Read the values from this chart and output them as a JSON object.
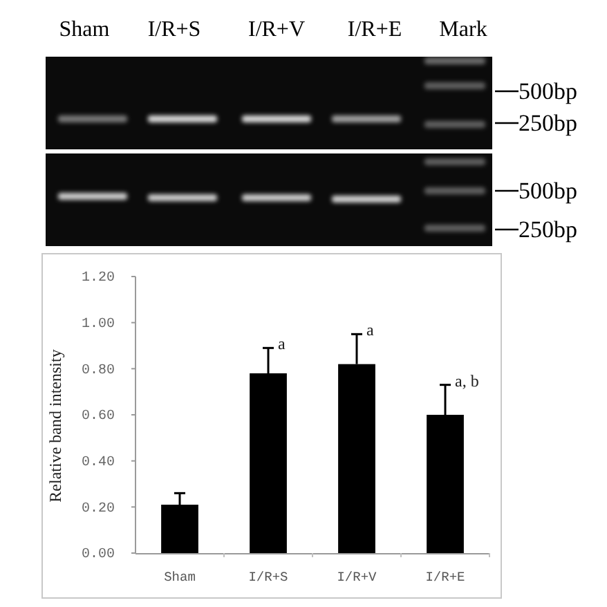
{
  "chart_data": {
    "type": "bar",
    "ylabel": "Relative band intensity",
    "categories": [
      "Sham",
      "I/R+S",
      "I/R+V",
      "I/R+E"
    ],
    "values": [
      0.21,
      0.78,
      0.82,
      0.6
    ],
    "color": "#000000",
    "errors": [
      [
        0.21,
        0.26
      ],
      [
        0.78,
        0.89
      ],
      [
        0.82,
        0.95
      ],
      [
        0.6,
        0.73
      ]
    ],
    "ylim": [
      0,
      1.2
    ],
    "yticks": [
      {
        "value": 0,
        "label": "0.00"
      },
      {
        "value": 0.2,
        "label": "0.20"
      },
      {
        "value": 0.4,
        "label": "0.40"
      },
      {
        "value": 0.6,
        "label": "0.60"
      },
      {
        "value": 0.8,
        "label": "0.80"
      },
      {
        "value": 1.0,
        "label": "1.00"
      },
      {
        "value": 1.2,
        "label": "1.20"
      }
    ],
    "annotations": [
      {
        "text": "a",
        "x": "I/R+S",
        "y": 0.89
      },
      {
        "text": "a",
        "x": "I/R+V",
        "y": 0.95
      },
      {
        "text": "a, b",
        "x": "I/R+E",
        "y": 0.73
      },
      "Sham",
      "I/R+S",
      "I/R+V",
      "I/R+E",
      "Mark",
      "500bp",
      "250bp",
      "500bp",
      "250bp"
    ]
  }
}
